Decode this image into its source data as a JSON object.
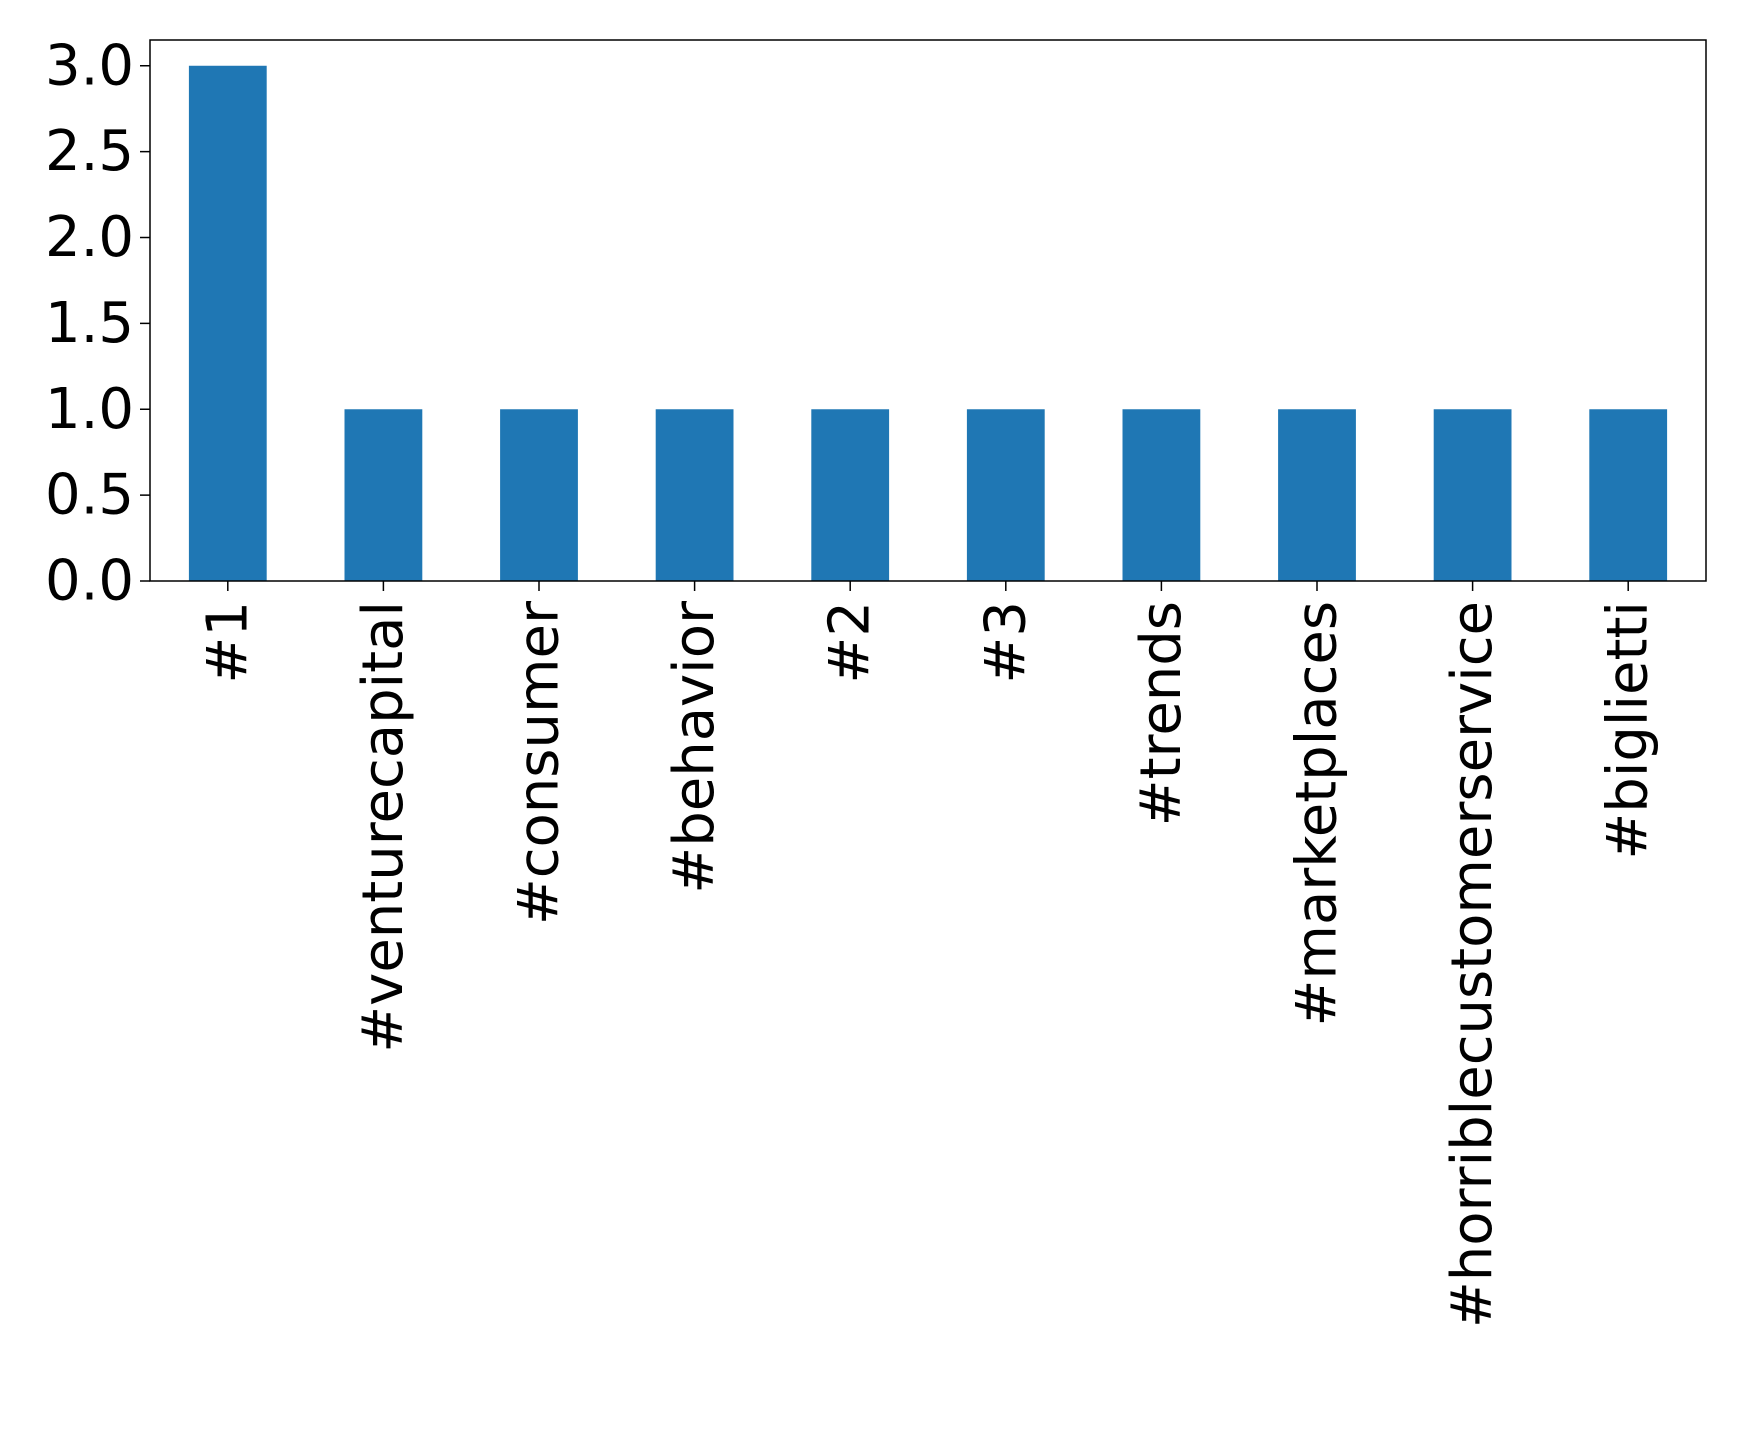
{
  "chart_data": {
    "type": "bar",
    "categories": [
      "#1",
      "#venturecapital",
      "#consumer",
      "#behavior",
      "#2",
      "#3",
      "#trends",
      "#marketplaces",
      "#horriblecustomerservice",
      "#biglietti"
    ],
    "values": [
      3,
      1,
      1,
      1,
      1,
      1,
      1,
      1,
      1,
      1
    ],
    "yticks": [
      "0.0",
      "0.5",
      "1.0",
      "1.5",
      "2.0",
      "2.5",
      "3.0"
    ],
    "ylim": [
      0,
      3.15
    ],
    "bar_color": "#1f77b4",
    "grid": false,
    "legend": "none"
  }
}
